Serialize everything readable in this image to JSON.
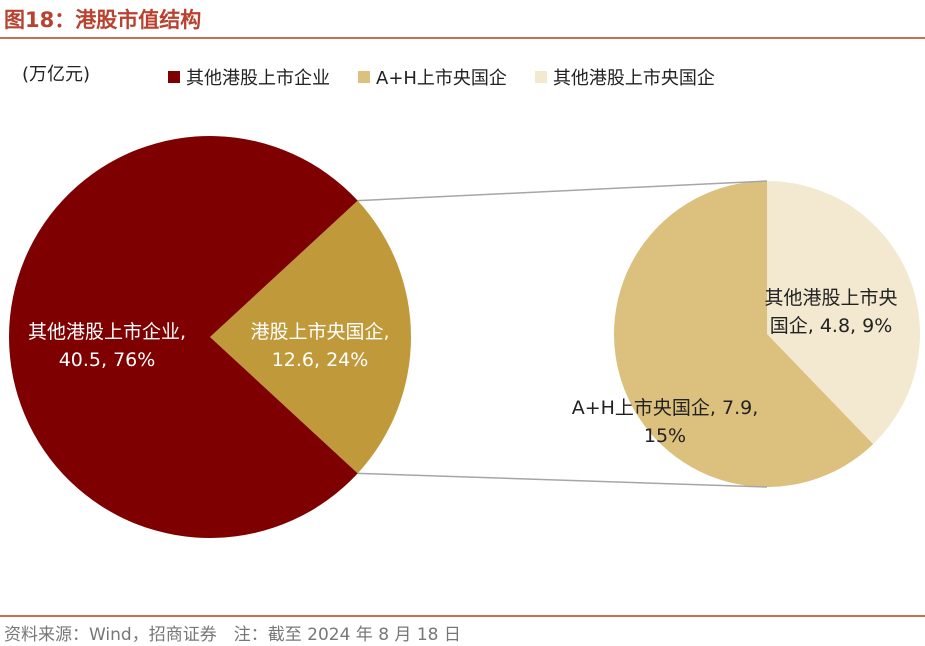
{
  "title": "图18：港股市值结构",
  "unit": "(万亿元)",
  "legend": [
    {
      "label": "其他港股上市企业",
      "color": "#7f0000"
    },
    {
      "label": "A+H上市央国企",
      "color": "#dcc07e"
    },
    {
      "label": "其他港股上市央国企",
      "color": "#f3e9d1"
    }
  ],
  "source": "资料来源：Wind，招商证券　注：截至 2024 年 8 月 18 日",
  "chart_data": [
    {
      "type": "pie",
      "categories": [
        "其他港股上市企业",
        "港股上市央国企"
      ],
      "values": [
        40.5,
        12.6
      ],
      "value_labels": [
        "其他港股上市企业, 40.5, 76%",
        "港股上市央国企, 12.6, 24%"
      ],
      "colors": [
        "#7f0000",
        "#c09a3a"
      ]
    },
    {
      "type": "pie",
      "categories": [
        "A+H上市央国企",
        "其他港股上市央国企"
      ],
      "values": [
        7.9,
        4.8
      ],
      "value_labels": [
        "A+H上市央国企, 7.9, 15%",
        "其他港股上市央国企, 4.8, 9%"
      ],
      "colors": [
        "#dcc07e",
        "#f3e9d1"
      ]
    }
  ]
}
